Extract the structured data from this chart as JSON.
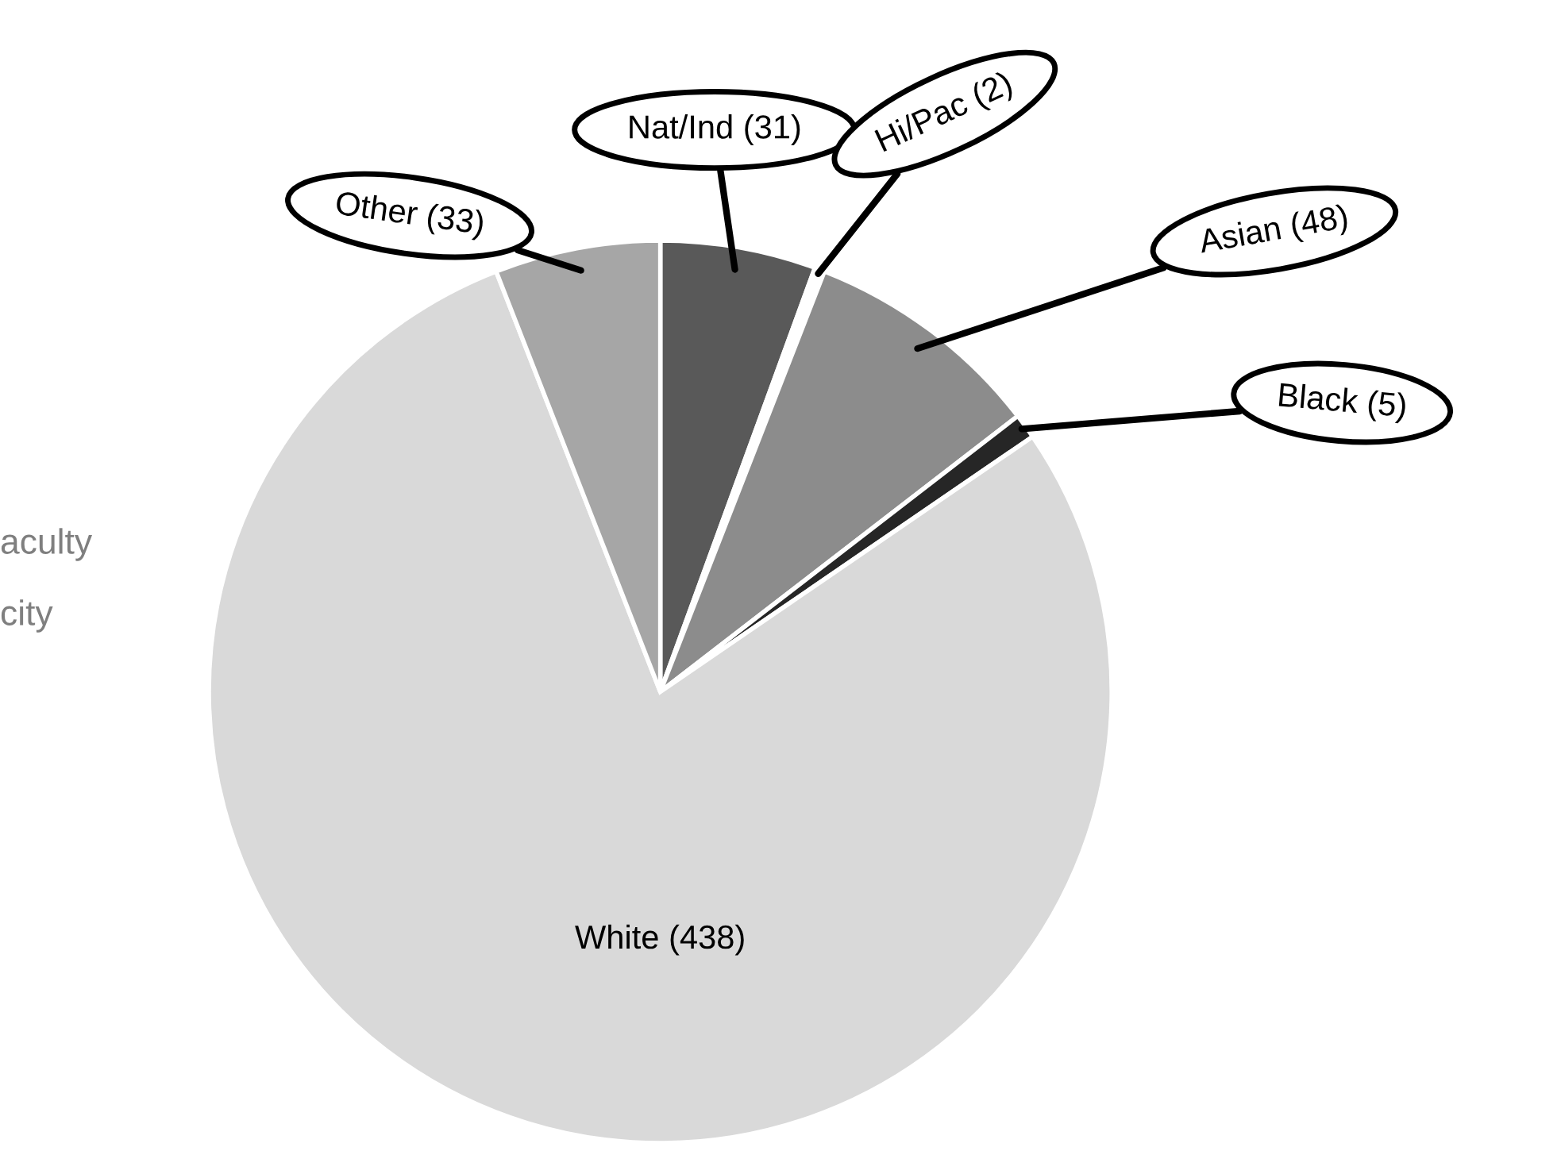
{
  "chart_data": {
    "type": "pie",
    "categories": [
      "Nat/Ind",
      "Hi/Pac",
      "Asian",
      "Black",
      "White",
      "Other"
    ],
    "values": [
      31,
      2,
      48,
      5,
      438,
      33
    ],
    "colors": [
      "#595959",
      "#ffffff",
      "#8c8c8c",
      "#262626",
      "#d9d9d9",
      "#a6a6a6"
    ],
    "value_labels": [
      "(31)",
      "(2)",
      "(48)",
      "(5)",
      "(438)",
      "(33)"
    ],
    "annotations": [
      "aculty",
      "city"
    ]
  }
}
